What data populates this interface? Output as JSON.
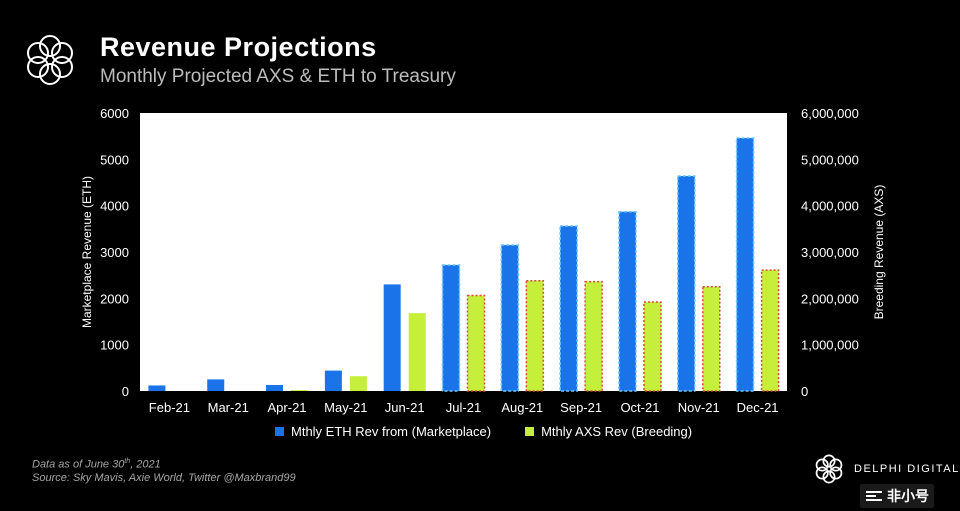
{
  "header": {
    "title": "Revenue Projections",
    "subtitle": "Monthly Projected AXS & ETH to Treasury"
  },
  "colors": {
    "eth": "#1a73e8",
    "axs": "#c5ef3a",
    "eth_border": "#6fc8ff",
    "axs_border": "#d64a3a",
    "plot_bg": "#ffffff",
    "axis_text": "#ffffff"
  },
  "chart_data": {
    "type": "bar",
    "categories": [
      "Feb-21",
      "Mar-21",
      "Apr-21",
      "May-21",
      "Jun-21",
      "Jul-21",
      "Aug-21",
      "Sep-21",
      "Oct-21",
      "Nov-21",
      "Dec-21"
    ],
    "series": [
      {
        "name": "Mthly ETH Rev from (Marketplace)",
        "axis": "left",
        "projected_from_index": 5,
        "values": [
          120,
          250,
          130,
          440,
          2300,
          2720,
          3150,
          3560,
          3870,
          4640,
          5460
        ]
      },
      {
        "name": "Mthly AXS Rev (Breeding)",
        "axis": "right",
        "values": [
          0,
          0,
          20000,
          320000,
          1680000,
          2060000,
          2380000,
          2360000,
          1920000,
          2250000,
          2610000
        ]
      }
    ],
    "ylabel": "Marketplace Revenue (ETH)",
    "y2label": "Breeding Revenue (AXS)",
    "ylim": [
      0,
      6000
    ],
    "y2lim": [
      0,
      6000000
    ],
    "yticks": [
      "0",
      "1000",
      "2000",
      "3000",
      "4000",
      "5000",
      "6000"
    ],
    "y2ticks": [
      "0",
      "1,000,000",
      "2,000,000",
      "3,000,000",
      "4,000,000",
      "5,000,000",
      "6,000,000"
    ],
    "grid": false,
    "legend_position": "bottom"
  },
  "legend": {
    "eth_label": "Mthly ETH Rev from (Marketplace)",
    "axs_label": "Mthly AXS Rev (Breeding)"
  },
  "footer": {
    "data_as_of_prefix": "Data as of June 30",
    "data_as_of_sup": "th",
    "data_as_of_suffix": ", 2021",
    "source": "Source:  Sky Mavis, Axie World, Twitter @Maxbrand99"
  },
  "brand": {
    "name": "DELPHI DIGITAL"
  },
  "watermark": {
    "text": "非小号"
  }
}
